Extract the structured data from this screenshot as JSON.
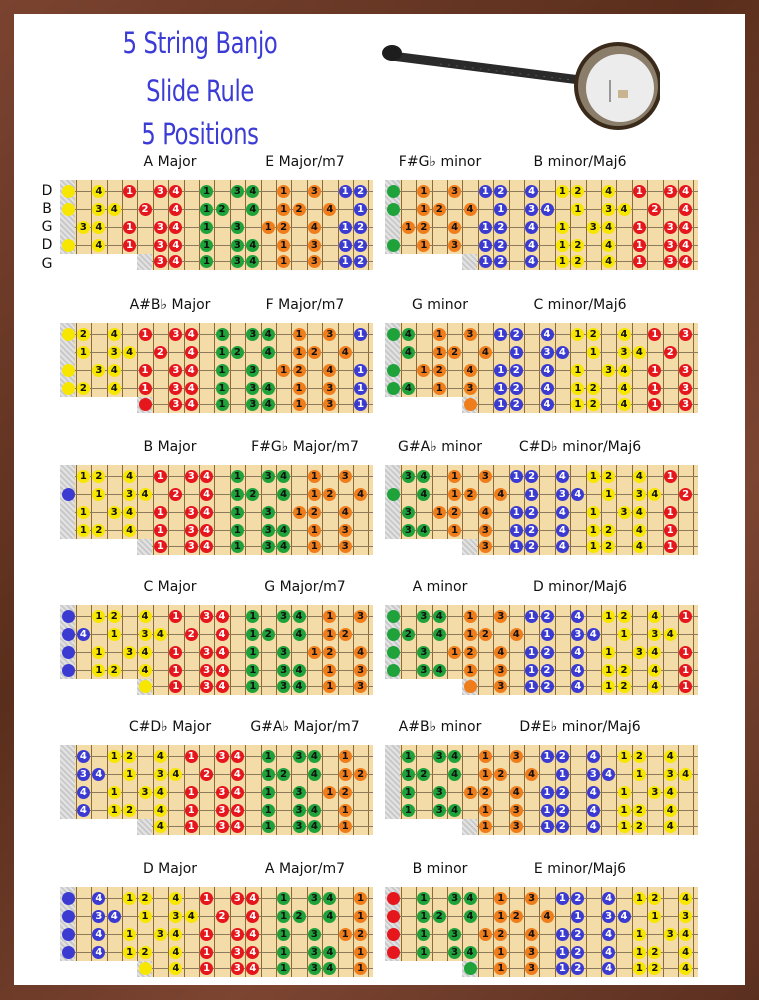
{
  "title": {
    "line1": "5 String Banjo",
    "line2": "Slide Rule",
    "line3": "5 Positions"
  },
  "image": {
    "name": "banjo"
  },
  "string_labels": [
    "D",
    "B",
    "G",
    "D",
    "G"
  ],
  "colors": {
    "y": "#f7e600",
    "r": "#e5161c",
    "g": "#1fa23a",
    "o": "#f07d1c",
    "b": "#3b3bd2",
    "title": "#3b3bd6"
  },
  "boards": [
    {
      "labels": [
        "A Major",
        "E Major/m7"
      ],
      "rows": [
        "0:y 2:y4 4:r1 6:r3 7:r4 9:g1 11:g3 12:g4 14:o1 16:o3 18:b1 19:b2",
        "0:y 2:y3 3:y4 5:r2 7:r4 9:g1 10:g2 12:g4 14:o1 15:o2 17:o4 19:b1",
        "1:y3 2:y4 4:r1 6:r3 7:r4 9:g1 11:g3 13:o1 14:o2 16:o4 18:b1 19:b2",
        "0:y 2:y4 4:r1 6:r3 7:r4 9:g1 11:g3 12:g4 14:o1 16:o3 18:b1 19:b2",
        "6:r3 7:r4 9:g1 11:g3 12:g4 14:o1 16:o3 18:b1 19:b2"
      ]
    },
    {
      "labels": [
        "F#G♭ minor",
        "B minor/Maj6"
      ],
      "rows": [
        "0:g 2:o1 4:o3 6:b1 7:b2 9:b4 11:y1 12:y2 14:y4 16:r1 18:r3 19:r4",
        "0:g 2:o1 3:o2 5:o4 7:b1 9:b3 10:b4 12:y1 14:y3 15:y4 17:r2 19:r4",
        "1:o1 2:o2 4:o4 6:b1 7:b2 9:b4 11:y1 13:y3 14:y4 16:r1 18:r3 19:r4",
        "0:g 2:o1 4:o3 6:b1 7:b2 9:b4 11:y1 12:y2 14:y4 16:r1 18:r3 19:r4",
        "6:b1 7:b2 9:b4 11:y1 12:y2 14:y4 16:r1 18:r3 19:r4"
      ]
    },
    {
      "labels": [
        "A#B♭ Major",
        "F Major/m7"
      ],
      "rows": [
        "0:y 1:y2 3:y4 5:r1 7:r3 8:r4 10:g1 12:g3 13:g4 15:o1 17:o3 19:b1",
        "1:y1 3:y3 4:y4 6:r2 8:r4 10:g1 11:g2 13:g4 15:o1 16:o2 18:o4",
        "0:y 2:y3 3:y4 5:r1 7:r3 8:r4 10:g1 12:g3 14:o1 15:o2 17:o4 19:b1",
        "0:y 1:y2 3:y4 5:r1 7:r3 8:r4 10:g1 12:g3 13:g4 15:o1 17:o3 19:b1",
        "5:r 7:r3 8:r4 10:g1 12:g3 13:g4 15:o1 17:o3 19:b1"
      ]
    },
    {
      "labels": [
        "G minor",
        "C minor/Maj6"
      ],
      "rows": [
        "0:g 1:g4 3:o1 5:o3 7:b1 8:b2 10:b4 12:y1 13:y2 15:y4 17:r1 19:r3",
        "1:g4 3:o1 4:o2 6:o4 8:b1 10:b3 11:b4 13:y1 15:y3 16:y4 18:r2",
        "0:g 2:o1 3:o2 5:o4 7:b1 8:b2 10:b4 12:y1 14:y3 15:y4 17:r1 19:r3",
        "0:g 1:g4 3:o1 5:o3 7:b1 8:b2 10:b4 12:y1 13:y2 15:y4 17:r1 19:r3",
        "5:o 7:b1 8:b2 10:b4 12:y1 13:y2 15:y4 17:r1 19:r3"
      ]
    },
    {
      "labels": [
        "B Major",
        "F#G♭ Major/m7"
      ],
      "rows": [
        "1:y1 2:y2 4:y4 6:r1 8:r3 9:r4 11:g1 13:g3 14:g4 16:o1 18:o3",
        "0:b 2:y1 4:y3 5:y4 7:r2 9:r4 11:g1 12:g2 14:g4 16:o1 17:o2 19:o4",
        "1:y1 3:y3 4:y4 6:r1 8:r3 9:r4 11:g1 13:g3 15:o1 16:o2 18:o4",
        "1:y1 2:y2 4:y4 6:r1 8:r3 9:r4 11:g1 13:g3 14:g4 16:o1 18:o3",
        "6:r1 8:r3 9:r4 11:g1 13:g3 14:g4 16:o1 18:o3"
      ]
    },
    {
      "labels": [
        "G#A♭ minor",
        "C#D♭ minor/Maj6"
      ],
      "rows": [
        "1:g3 2:g4 4:o1 6:o3 8:b1 9:b2 11:b4 13:y1 14:y2 16:y4 18:r1",
        "0:g 2:g4 4:o1 5:o2 7:o4 9:b1 11:b3 12:b4 14:y1 16:y3 17:y4 19:r2",
        "1:g3 3:o1 4:o2 6:o4 8:b1 9:b2 11:b4 13:y1 15:y3 16:y4 18:r1",
        "1:g3 2:g4 4:o1 6:o3 8:b1 9:b2 11:b4 13:y1 14:y2 16:y4 18:r1",
        "6:o3 8:b1 9:b2 11:b4 13:y1 14:y2 16:y4 18:r1"
      ]
    },
    {
      "labels": [
        "C Major",
        "G Major/m7"
      ],
      "rows": [
        "0:b 2:y1 3:y2 5:y4 7:r1 9:r3 10:r4 12:g1 14:g3 15:g4 17:o1 19:o3",
        "0:b 1:b4 3:y1 5:y3 6:y4 8:r2 10:r4 12:g1 13:g2 15:g4 17:o1 18:o2",
        "0:b 2:y1 4:y3 5:y4 7:r1 9:r3 10:r4 12:g1 14:g3 16:o1 17:o2 19:o4",
        "0:b 2:y1 3:y2 5:y4 7:r1 9:r3 10:r4 12:g1 14:g3 15:g4 17:o1 19:o3",
        "5:y 7:r1 9:r3 10:r4 12:g1 14:g3 15:g4 17:o1 19:o3"
      ]
    },
    {
      "labels": [
        "A minor",
        "D minor/Maj6"
      ],
      "rows": [
        "0:g 2:g3 3:g4 5:o1 7:o3 9:b1 10:b2 12:b4 14:y1 15:y2 17:y4 19:r1",
        "0:g 1:g2 3:g4 5:o1 6:o2 8:o4 10:b1 12:b3 13:b4 15:y1 17:y3 18:y4",
        "0:g 2:g3 4:o1 5:o2 7:o4 9:b1 10:b2 12:b4 14:y1 16:y3 17:y4 19:r1",
        "0:g 2:g3 3:g4 5:o1 7:o3 9:b1 10:b2 12:b4 14:y1 15:y2 17:y4 19:r1",
        "5:o 7:o3 9:b1 10:b2 12:b4 14:y1 15:y2 17:y4 19:r1"
      ]
    },
    {
      "labels": [
        "C#D♭ Major",
        "G#A♭ Major/m7"
      ],
      "rows": [
        "1:b4 3:y1 4:y2 6:y4 8:r1 10:r3 11:r4 13:g1 15:g3 16:g4 18:o1",
        "1:b3 2:b4 4:y1 6:y3 7:y4 9:r2 11:r4 13:g1 14:g2 16:g4 18:o1 19:o2",
        "1:b4 3:y1 5:y3 6:y4 8:r1 10:r3 11:r4 13:g1 15:g3 17:o1 18:o2",
        "1:b4 3:y1 4:y2 6:y4 8:r1 10:r3 11:r4 13:g1 15:g3 16:g4 18:o1",
        "6:y4 8:r1 10:r3 11:r4 13:g1 15:g3 16:g4 18:o1"
      ]
    },
    {
      "labels": [
        "A#B♭ minor",
        "D#E♭ minor/Maj6"
      ],
      "rows": [
        "1:g1 3:g3 4:g4 6:o1 8:o3 10:b1 11:b2 13:b4 15:y1 16:y2 18:y4",
        "1:g1 2:g2 4:g4 6:o1 7:o2 9:o4 11:b1 13:b3 14:b4 16:y1 18:y3 19:y4",
        "1:g1 3:g3 5:o1 6:o2 8:o4 10:b1 11:b2 13:b4 15:y1 17:y3 18:y4",
        "1:g1 3:g3 4:g4 6:o1 8:o3 10:b1 11:b2 13:b4 15:y1 16:y2 18:y4",
        "6:o1 8:o3 10:b1 11:b2 13:b4 15:y1 16:y2 18:y4"
      ]
    },
    {
      "labels": [
        "D Major",
        "A Major/m7"
      ],
      "rows": [
        "0:b 2:b4 4:y1 5:y2 7:y4 9:r1 11:r3 12:r4 14:g1 16:g3 17:g4 19:o1",
        "0:b 2:b3 3:b4 5:y1 7:y3 8:y4 10:r2 12:r4 14:g1 15:g2 17:g4 19:o1",
        "0:b 2:b4 4:y1 6:y3 7:y4 9:r1 11:r3 12:r4 14:g1 16:g3 18:o1 19:o2",
        "0:b 2:b4 4:y1 5:y2 7:y4 9:r1 11:r3 12:r4 14:g1 16:g3 17:g4 19:o1",
        "5:y 7:y4 9:r1 11:r3 12:r4 14:g1 16:g3 17:g4 19:o1"
      ]
    },
    {
      "labels": [
        "B minor",
        "E minor/Maj6"
      ],
      "rows": [
        "0:r 2:g1 4:g3 5:g4 7:o1 9:o3 11:b1 12:b2 14:b4 16:y1 17:y2 19:y4",
        "0:r 2:g1 3:g2 5:g4 7:o1 8:o2 10:o4 12:b1 14:b3 15:b4 17:y1 19:y3",
        "0:r 2:g1 4:g3 6:o1 7:o2 9:o4 11:b1 12:b2 14:b4 16:y1 18:y3 19:y4",
        "0:r 2:g1 4:g3 5:g4 7:o1 9:o3 11:b1 12:b2 14:b4 16:y1 17:y2 19:y4",
        "5:g 7:o1 9:o3 11:b1 12:b2 14:b4 16:y1 17:y2 19:y4"
      ]
    }
  ]
}
